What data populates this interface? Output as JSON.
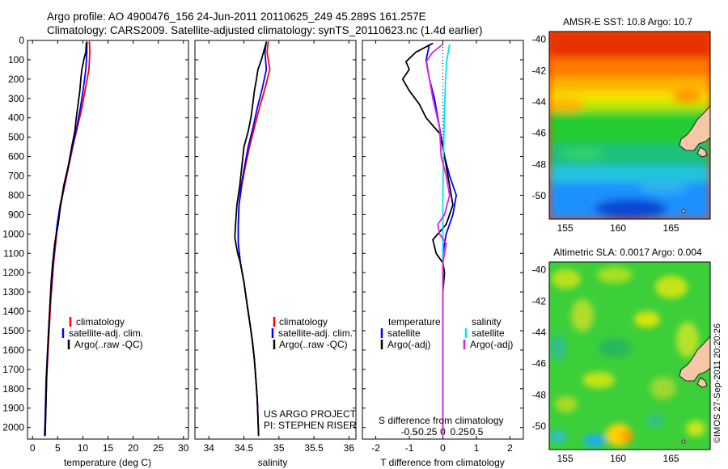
{
  "header": {
    "line1": "Argo profile: AO 4900476_156 24-Jun-2011 20110625_249 45.289S 161.257E",
    "line2": "Climatology: CARS2009. Satellite-adjusted climatology: synTS_20110623.nc (1.4d earlier)"
  },
  "colors": {
    "climatology": "#ff0000",
    "satellite": "#0000ff",
    "argo": "#000000",
    "satellite_salinity": "#00e5ee",
    "argo_salinity": "#e020e0"
  },
  "chart_data": [
    {
      "type": "line",
      "id": "temperature",
      "xlabel": "temperature (deg C)",
      "xlim": [
        -1,
        31
      ],
      "ylim": [
        2060,
        0
      ],
      "x_ticks": [
        "0",
        "5",
        "10",
        "15",
        "20",
        "25",
        "30"
      ],
      "x_tick_values": [
        0,
        5,
        10,
        15,
        20,
        25,
        30
      ],
      "y_ticks": [
        "0",
        "100",
        "200",
        "300",
        "400",
        "500",
        "600",
        "700",
        "800",
        "900",
        "1000",
        "1100",
        "1200",
        "1300",
        "1400",
        "1500",
        "1600",
        "1700",
        "1800",
        "1900",
        "2000"
      ],
      "y_tick_values": [
        0,
        100,
        200,
        300,
        400,
        500,
        600,
        700,
        800,
        900,
        1000,
        1100,
        1200,
        1300,
        1400,
        1500,
        1600,
        1700,
        1800,
        1900,
        2000
      ],
      "legend": [
        "climatology",
        "satellite-adj. clim.",
        "Argo(..raw -QC)"
      ],
      "series": [
        {
          "name": "climatology",
          "color": "#ff0000",
          "points": [
            [
              11.3,
              5
            ],
            [
              11.4,
              60
            ],
            [
              11.2,
              150
            ],
            [
              10.5,
              250
            ],
            [
              9.8,
              350
            ],
            [
              8.9,
              450
            ],
            [
              8.0,
              550
            ],
            [
              7.2,
              650
            ],
            [
              6.4,
              750
            ],
            [
              5.6,
              850
            ],
            [
              5.0,
              950
            ],
            [
              4.6,
              1050
            ],
            [
              4.2,
              1150
            ],
            [
              3.9,
              1250
            ],
            [
              3.6,
              1350
            ],
            [
              3.4,
              1450
            ],
            [
              3.2,
              1550
            ],
            [
              3.0,
              1650
            ],
            [
              2.8,
              1750
            ],
            [
              2.7,
              1850
            ],
            [
              2.6,
              1950
            ],
            [
              2.5,
              2045
            ]
          ]
        },
        {
          "name": "satellite-adj. clim.",
          "color": "#0000ff",
          "points": [
            [
              10.8,
              5
            ],
            [
              10.8,
              60
            ],
            [
              10.6,
              150
            ],
            [
              10.1,
              250
            ],
            [
              9.5,
              350
            ],
            [
              8.8,
              450
            ],
            [
              7.9,
              550
            ],
            [
              7.1,
              650
            ],
            [
              6.3,
              750
            ],
            [
              5.5,
              850
            ],
            [
              4.9,
              950
            ],
            [
              4.5,
              1050
            ],
            [
              4.1,
              1150
            ],
            [
              3.8,
              1250
            ],
            [
              3.5,
              1350
            ],
            [
              3.3,
              1450
            ],
            [
              3.1,
              1550
            ],
            [
              2.9,
              1650
            ],
            [
              2.7,
              1750
            ],
            [
              2.6,
              1850
            ],
            [
              2.5,
              1950
            ],
            [
              2.4,
              2045
            ]
          ]
        },
        {
          "name": "Argo(..raw -QC)",
          "color": "#000000",
          "points": [
            [
              10.7,
              10
            ],
            [
              10.6,
              60
            ],
            [
              10.2,
              100
            ],
            [
              9.8,
              150
            ],
            [
              9.6,
              200
            ],
            [
              9.4,
              260
            ],
            [
              9.1,
              320
            ],
            [
              8.7,
              400
            ],
            [
              8.4,
              470
            ],
            [
              7.8,
              550
            ],
            [
              7.1,
              650
            ],
            [
              6.2,
              750
            ],
            [
              5.6,
              850
            ],
            [
              5.1,
              950
            ],
            [
              4.4,
              1050
            ],
            [
              4.0,
              1150
            ],
            [
              3.7,
              1250
            ],
            [
              3.5,
              1350
            ],
            [
              3.3,
              1450
            ],
            [
              3.1,
              1550
            ],
            [
              2.9,
              1650
            ],
            [
              2.8,
              1750
            ],
            [
              2.7,
              1850
            ],
            [
              2.6,
              1950
            ],
            [
              2.5,
              2040
            ]
          ]
        }
      ]
    },
    {
      "type": "line",
      "id": "salinity",
      "xlabel": "salinity",
      "xlim": [
        33.8,
        36.1
      ],
      "ylim": [
        2060,
        0
      ],
      "x_ticks": [
        "34",
        "34.5",
        "35",
        "35.5",
        "36"
      ],
      "x_tick_values": [
        34,
        34.5,
        35,
        35.5,
        36
      ],
      "legend": [
        "climatology",
        "satellite-adj. clim.",
        "Argo(..raw -QC)"
      ],
      "annotation": [
        "US ARGO PROJECT",
        "PI: STEPHEN RISER"
      ],
      "series": [
        {
          "name": "climatology",
          "color": "#ff0000",
          "points": [
            [
              34.85,
              5
            ],
            [
              34.83,
              60
            ],
            [
              34.87,
              150
            ],
            [
              34.8,
              250
            ],
            [
              34.72,
              350
            ],
            [
              34.65,
              450
            ],
            [
              34.58,
              550
            ],
            [
              34.52,
              650
            ],
            [
              34.47,
              750
            ],
            [
              34.43,
              850
            ],
            [
              34.42,
              950
            ],
            [
              34.42,
              1050
            ],
            [
              34.45,
              1150
            ],
            [
              34.5,
              1250
            ],
            [
              34.54,
              1350
            ],
            [
              34.58,
              1450
            ],
            [
              34.62,
              1550
            ],
            [
              34.65,
              1650
            ],
            [
              34.67,
              1750
            ],
            [
              34.69,
              1850
            ],
            [
              34.7,
              1950
            ],
            [
              34.71,
              2045
            ]
          ]
        },
        {
          "name": "satellite-adj. clim.",
          "color": "#0000ff",
          "points": [
            [
              34.82,
              5
            ],
            [
              34.8,
              60
            ],
            [
              34.82,
              150
            ],
            [
              34.76,
              250
            ],
            [
              34.69,
              350
            ],
            [
              34.63,
              450
            ],
            [
              34.56,
              550
            ],
            [
              34.51,
              650
            ],
            [
              34.46,
              750
            ],
            [
              34.43,
              850
            ],
            [
              34.42,
              950
            ],
            [
              34.42,
              1050
            ],
            [
              34.45,
              1150
            ],
            [
              34.5,
              1250
            ],
            [
              34.54,
              1350
            ],
            [
              34.58,
              1450
            ],
            [
              34.62,
              1550
            ],
            [
              34.65,
              1650
            ],
            [
              34.67,
              1750
            ],
            [
              34.69,
              1850
            ],
            [
              34.7,
              1950
            ],
            [
              34.71,
              2045
            ]
          ]
        },
        {
          "name": "Argo(..raw -QC)",
          "color": "#000000",
          "points": [
            [
              34.82,
              10
            ],
            [
              34.78,
              60
            ],
            [
              34.75,
              100
            ],
            [
              34.7,
              150
            ],
            [
              34.68,
              200
            ],
            [
              34.65,
              260
            ],
            [
              34.63,
              320
            ],
            [
              34.6,
              400
            ],
            [
              34.56,
              470
            ],
            [
              34.5,
              550
            ],
            [
              34.47,
              650
            ],
            [
              34.44,
              750
            ],
            [
              34.4,
              850
            ],
            [
              34.38,
              950
            ],
            [
              34.37,
              1020
            ],
            [
              34.41,
              1100
            ],
            [
              34.45,
              1150
            ],
            [
              34.5,
              1250
            ],
            [
              34.54,
              1350
            ],
            [
              34.58,
              1450
            ],
            [
              34.62,
              1550
            ],
            [
              34.65,
              1650
            ],
            [
              34.67,
              1750
            ],
            [
              34.69,
              1850
            ],
            [
              34.7,
              1950
            ],
            [
              34.71,
              2040
            ]
          ]
        }
      ]
    },
    {
      "type": "line",
      "id": "difference",
      "xlabel": "T difference from climatology",
      "xlabel_top": "S difference from climatology",
      "xlim": [
        -2.4,
        2.4
      ],
      "ylim": [
        2060,
        0
      ],
      "x_ticks": [
        "-2",
        "-1",
        "0",
        "1",
        "2"
      ],
      "x_tick_values": [
        -2,
        -1,
        0,
        1,
        2
      ],
      "s_ticks": [
        "-0.5",
        "-0.25",
        "0",
        "0.25",
        "0.5"
      ],
      "legend_temperature": {
        "heading": "temperature",
        "items": [
          "satellite",
          "Argo(-adj)"
        ]
      },
      "legend_salinity": {
        "heading": "salinity",
        "items": [
          "satellite",
          "Argo(-adj)"
        ]
      },
      "series": [
        {
          "name": "temperature satellite",
          "color": "#0000ff",
          "points": [
            [
              -0.4,
              20
            ],
            [
              -0.5,
              100
            ],
            [
              -0.4,
              200
            ],
            [
              -0.25,
              300
            ],
            [
              -0.1,
              450
            ],
            [
              0.05,
              600
            ],
            [
              0.2,
              700
            ],
            [
              0.4,
              800
            ],
            [
              0.3,
              900
            ],
            [
              0.1,
              1000
            ],
            [
              0,
              1100
            ],
            [
              0,
              2045
            ]
          ]
        },
        {
          "name": "temperature Argo(-adj)",
          "color": "#000000",
          "points": [
            [
              -0.3,
              15
            ],
            [
              -0.8,
              60
            ],
            [
              -1.1,
              110
            ],
            [
              -1.0,
              150
            ],
            [
              -1.2,
              200
            ],
            [
              -1.0,
              260
            ],
            [
              -0.7,
              330
            ],
            [
              -0.5,
              400
            ],
            [
              -0.1,
              480
            ],
            [
              0,
              550
            ],
            [
              0.1,
              650
            ],
            [
              0.2,
              750
            ],
            [
              0.3,
              850
            ],
            [
              0.1,
              950
            ],
            [
              -0.3,
              1030
            ],
            [
              -0.2,
              1100
            ],
            [
              0,
              1150
            ],
            [
              0.05,
              1200
            ],
            [
              0,
              1300
            ],
            [
              0,
              2040
            ]
          ]
        },
        {
          "name": "salinity satellite",
          "color": "#00e5ee",
          "points": [
            [
              0.2,
              20
            ],
            [
              0.12,
              100
            ],
            [
              0.08,
              200
            ],
            [
              0.04,
              400
            ],
            [
              0.02,
              600
            ],
            [
              0,
              800
            ],
            [
              0,
              1100
            ],
            [
              0,
              2045
            ]
          ]
        },
        {
          "name": "salinity Argo(-adj)",
          "color": "#e020e0",
          "points": [
            [
              0,
              20
            ],
            [
              -0.3,
              60
            ],
            [
              -0.5,
              110
            ],
            [
              -0.4,
              200
            ],
            [
              -0.3,
              300
            ],
            [
              -0.1,
              450
            ],
            [
              -0.05,
              600
            ],
            [
              0.1,
              700
            ],
            [
              0.2,
              800
            ],
            [
              0.05,
              900
            ],
            [
              -0.15,
              950
            ],
            [
              -0.1,
              1000
            ],
            [
              0.1,
              1050
            ],
            [
              0,
              1150
            ],
            [
              0,
              2040
            ]
          ]
        }
      ]
    },
    {
      "type": "heatmap",
      "id": "sst_map",
      "title": "AMSR-E SST: 10.8 Argo: 10.7",
      "xlim": [
        153.5,
        168.7
      ],
      "ylim": [
        -51.5,
        -39.5
      ],
      "x_ticks": [
        "155",
        "160",
        "165"
      ],
      "x_tick_values": [
        155,
        160,
        165
      ],
      "y_ticks": [
        "-40",
        "-42",
        "-44",
        "-46",
        "-48",
        "-50"
      ],
      "y_tick_values": [
        -40,
        -42,
        -44,
        -46,
        -48,
        -50
      ],
      "marker": {
        "lon": 161.257,
        "lat": -45.289
      }
    },
    {
      "type": "heatmap",
      "id": "sla_map",
      "title": "Altimetric SLA: 0.0017 Argo: 0.004",
      "xlim": [
        153.5,
        168.7
      ],
      "ylim": [
        -51.5,
        -39.5
      ],
      "x_ticks": [
        "155",
        "160",
        "165"
      ],
      "x_tick_values": [
        155,
        160,
        165
      ],
      "y_ticks": [
        "-40",
        "-42",
        "-44",
        "-46",
        "-48",
        "-50"
      ],
      "y_tick_values": [
        -40,
        -42,
        -44,
        -46,
        -48,
        -50
      ],
      "marker": {
        "lon": 161.257,
        "lat": -45.289
      }
    }
  ],
  "footer": {
    "side_stamp": "©IMOS 27-Sep-2011 20:20:26"
  }
}
